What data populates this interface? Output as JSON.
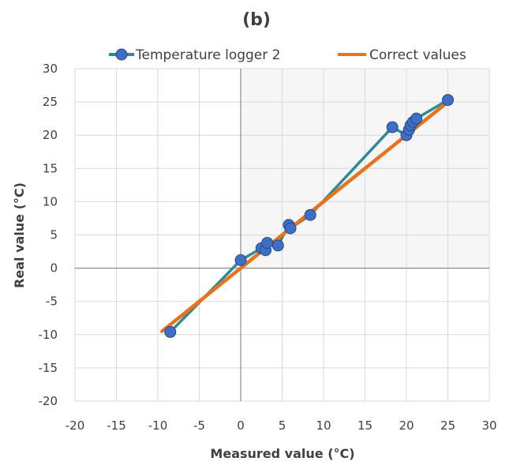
{
  "chart_data": {
    "type": "scatter",
    "title": "(b)",
    "xlabel": "Measured value (°C)",
    "ylabel": "Real value (°C)",
    "xlim": [
      -20,
      30
    ],
    "ylim": [
      -20,
      30
    ],
    "x_ticks": [
      -20,
      -15,
      -10,
      -5,
      0,
      5,
      10,
      15,
      20,
      25,
      30
    ],
    "y_ticks": [
      -20,
      -15,
      -10,
      -5,
      0,
      5,
      10,
      15,
      20,
      25,
      30
    ],
    "grid": true,
    "legend_position": "top",
    "series": [
      {
        "name": "Temperature logger 2",
        "style": "line-with-markers",
        "color": "#2e8a96",
        "marker_color": "#3f6fc4",
        "points": [
          [
            -8.5,
            -9.6
          ],
          [
            0.0,
            1.2
          ],
          [
            2.5,
            3.0
          ],
          [
            3.0,
            2.7
          ],
          [
            3.2,
            3.8
          ],
          [
            4.5,
            3.4
          ],
          [
            5.8,
            6.5
          ],
          [
            6.0,
            6.0
          ],
          [
            8.4,
            8.0
          ],
          [
            18.3,
            21.2
          ],
          [
            20.0,
            20.0
          ],
          [
            20.3,
            20.8
          ],
          [
            20.5,
            21.5
          ],
          [
            20.8,
            22.0
          ],
          [
            21.2,
            22.5
          ],
          [
            25.0,
            25.3
          ]
        ]
      },
      {
        "name": "Correct values",
        "style": "line",
        "color": "#e8731c",
        "points": [
          [
            -9.5,
            -9.5
          ],
          [
            25.0,
            25.0
          ]
        ]
      }
    ]
  }
}
